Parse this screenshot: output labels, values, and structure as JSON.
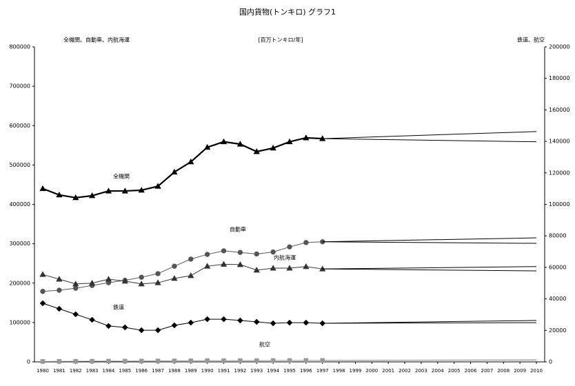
{
  "chart_data": {
    "type": "line",
    "title": "国内貨物(トンキロ) グラフ1",
    "y_label": "全機関、自動車、内航海運",
    "unit_label": "[百万トンキロ/年]",
    "y2_label": "鉄道、航空",
    "x": [
      1980,
      1981,
      1982,
      1983,
      1984,
      1985,
      1986,
      1987,
      1988,
      1989,
      1990,
      1991,
      1992,
      1993,
      1994,
      1995,
      1996,
      1997
    ],
    "xlim": [
      1980,
      2010
    ],
    "xticks": [
      1980,
      1981,
      1982,
      1983,
      1984,
      1985,
      1986,
      1987,
      1988,
      1989,
      1990,
      1991,
      1992,
      1993,
      1994,
      1995,
      1996,
      1997,
      1998,
      1999,
      2000,
      2001,
      2002,
      2003,
      2004,
      2005,
      2006,
      2007,
      2008,
      2009,
      2010
    ],
    "ylim": [
      0,
      800000
    ],
    "yticks": [
      0,
      100000,
      200000,
      300000,
      400000,
      500000,
      600000,
      700000,
      800000
    ],
    "y2lim": [
      0,
      200000
    ],
    "y2ticks": [
      0,
      20000,
      40000,
      60000,
      80000,
      100000,
      120000,
      140000,
      160000,
      180000,
      200000
    ],
    "series": [
      {
        "name": "全機関",
        "color": "#000000",
        "marker": "triangle",
        "width": 2.2,
        "values": [
          440000,
          424000,
          417000,
          422000,
          434000,
          434000,
          436000,
          446000,
          482000,
          508000,
          545000,
          559000,
          553000,
          534000,
          543000,
          559000,
          569000,
          567000
        ]
      },
      {
        "name": "自動車",
        "color": "#555555",
        "marker": "circle",
        "width": 1,
        "values": [
          179000,
          182000,
          187000,
          194000,
          201000,
          207000,
          215000,
          224000,
          243000,
          261000,
          273000,
          282000,
          278000,
          274000,
          279000,
          292000,
          303000,
          305000
        ]
      },
      {
        "name": "内航海運",
        "color": "#333333",
        "marker": "triangle",
        "width": 1,
        "values": [
          222000,
          210000,
          198000,
          200000,
          210000,
          205000,
          198000,
          201000,
          212000,
          219000,
          243000,
          248000,
          247000,
          233000,
          238000,
          238000,
          242000,
          236000
        ]
      },
      {
        "name": "鉄道",
        "color": "#000000",
        "marker": "diamond",
        "width": 1,
        "axis": "y2",
        "values": [
          37200,
          33700,
          30200,
          26700,
          22800,
          21900,
          20100,
          20100,
          23200,
          24900,
          27100,
          27100,
          26300,
          25400,
          24500,
          24900,
          24900,
          24500
        ]
      },
      {
        "name": "航空",
        "color": "#999999",
        "marker": "square",
        "width": 1,
        "axis": "y2",
        "values": [
          290,
          330,
          370,
          430,
          480,
          480,
          540,
          600,
          650,
          690,
          800,
          760,
          800,
          810,
          850,
          870,
          920,
          920
        ]
      },
      {
        "color": "#000000",
        "width": 1,
        "x": [
          1997,
          2010
        ],
        "values": [
          567000,
          585000
        ]
      },
      {
        "color": "#000000",
        "width": 1,
        "x": [
          1997,
          2010
        ],
        "values": [
          567000,
          559000
        ]
      },
      {
        "color": "#000000",
        "width": 1,
        "x": [
          1997,
          2010
        ],
        "values": [
          305000,
          315000
        ]
      },
      {
        "color": "#000000",
        "width": 1,
        "x": [
          1997,
          2010
        ],
        "values": [
          305000,
          301000
        ]
      },
      {
        "color": "#000000",
        "width": 1,
        "x": [
          1997,
          2010
        ],
        "values": [
          236000,
          242000
        ]
      },
      {
        "color": "#000000",
        "width": 1,
        "x": [
          1997,
          2010
        ],
        "values": [
          236000,
          231000
        ]
      },
      {
        "color": "#000000",
        "width": 1,
        "axis": "y2",
        "x": [
          1997,
          2010
        ],
        "values": [
          24500,
          26300
        ]
      },
      {
        "color": "#000000",
        "width": 1,
        "axis": "y2",
        "x": [
          1997,
          2010
        ],
        "values": [
          24500,
          24900
        ]
      },
      {
        "color": "#999999",
        "width": 1,
        "axis": "y2",
        "x": [
          1997,
          2010
        ],
        "values": [
          920,
          1300
        ]
      },
      {
        "color": "#999999",
        "width": 1,
        "axis": "y2",
        "x": [
          1997,
          2010
        ],
        "values": [
          920,
          1100
        ]
      }
    ]
  }
}
